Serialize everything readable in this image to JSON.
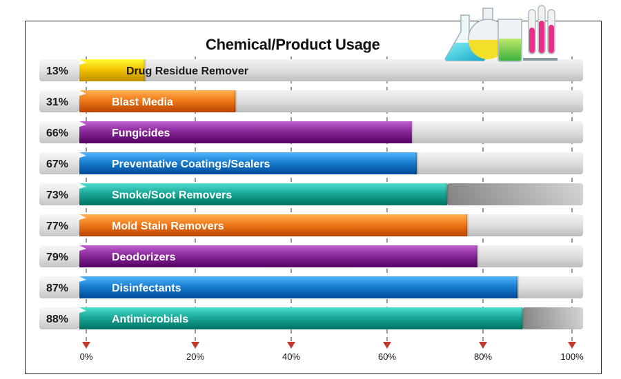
{
  "chart_data": {
    "type": "bar",
    "orientation": "horizontal",
    "title": "Chemical/Product Usage",
    "categories": [
      "Drug Residue Remover",
      "Blast Media",
      "Fungicides",
      "Preventative Coatings/Sealers",
      "Smoke/Soot Removers",
      "Mold Stain Removers",
      "Deodorizers",
      "Disinfectants",
      "Antimicrobials"
    ],
    "values": [
      13,
      31,
      66,
      67,
      73,
      77,
      79,
      87,
      88
    ],
    "value_labels": [
      "13%",
      "31%",
      "66%",
      "67%",
      "73%",
      "77%",
      "79%",
      "87%",
      "88%"
    ],
    "bar_colors": [
      "#f5c400",
      "#f07a1a",
      "#8a2a9a",
      "#1a7fd0",
      "#1aa898",
      "#f07a1a",
      "#8a2a9a",
      "#1a7fd0",
      "#1aa898"
    ],
    "xlim": [
      0,
      100
    ],
    "xticks": [
      "0%",
      "20%",
      "40%",
      "60%",
      "80%",
      "100%"
    ],
    "xtick_values": [
      0,
      20,
      40,
      60,
      80,
      100
    ],
    "grid": "dashed vertical",
    "decoration": "laboratory-glassware-illustration"
  }
}
